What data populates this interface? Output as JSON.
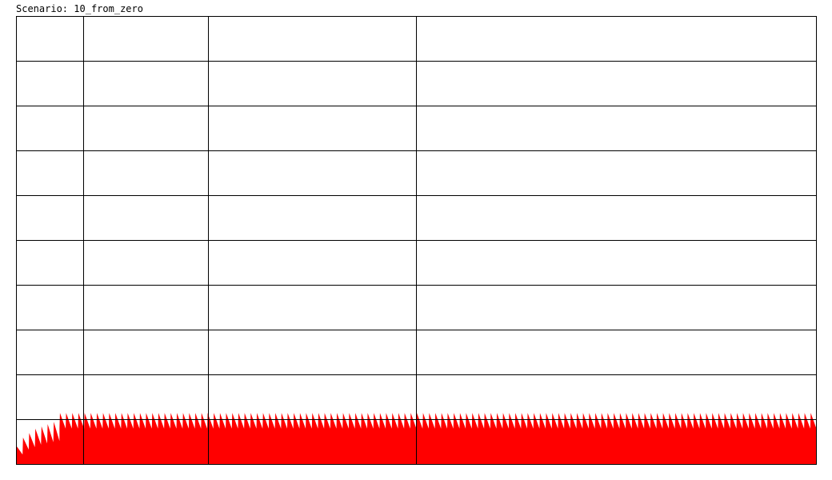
{
  "caption": {
    "label": "Scenario:",
    "value": "10_from_zero"
  },
  "colors": {
    "fill": "#ff0000",
    "grid": "#000000",
    "background": "#ffffff"
  },
  "chart_data": {
    "type": "area",
    "title": "",
    "xlabel": "",
    "ylabel": "",
    "grid": true,
    "legend": "none",
    "scenario": "10_from_zero",
    "note_on_vertical_grid": "vertical gridlines are unevenly spaced (non-linear time axis)",
    "vertical_gridlines": 3,
    "horizontal_gridlines": 9,
    "series": [
      {
        "pattern": "sawtooth",
        "baseline": 0,
        "initial_peaks": [
          0.4,
          0.6,
          0.7,
          0.8,
          0.85,
          0.9,
          0.95
        ],
        "steady_peak": 1.15,
        "steady_trough": 0.8,
        "cycles": 130
      }
    ]
  }
}
